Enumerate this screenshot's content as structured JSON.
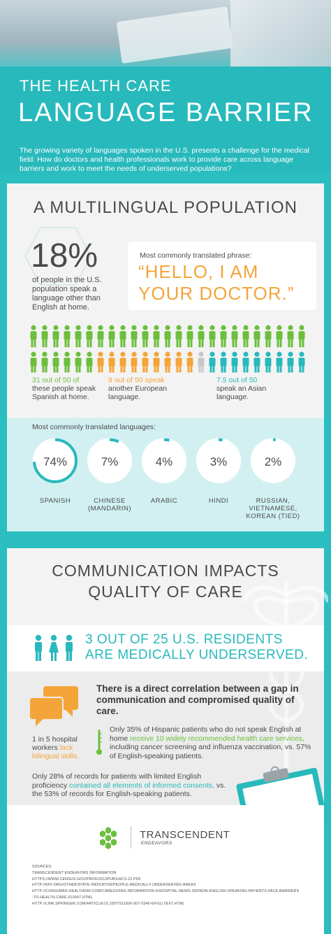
{
  "header": {
    "title_line1": "THE HEALTH CARE",
    "title_line2": "LANGUAGE BARRIER",
    "intro": "The growing variety of languages spoken in the U.S. presents a challenge for the medical field: How do doctors and health professionals work to provide care across language barriers and work to meet the needs of underserved populations?"
  },
  "multilingual": {
    "title": "A MULTILINGUAL POPULATION",
    "big_stat": "18%",
    "big_stat_desc": "of people in the U.S. population speak a language other than English at home.",
    "phrase_label": "Most commonly translated phrase:",
    "phrase": "“HELLO, I AM YOUR DOCTOR.”",
    "people_counts": {
      "spanish": 31,
      "european": 9,
      "asian": 7.5,
      "total": 50
    },
    "stats": [
      {
        "highlight": "31 out of 50 of",
        "text": "these people speak Spanish at home."
      },
      {
        "highlight": "9 out of 50 speak",
        "text": "another European language."
      },
      {
        "highlight": "7.5 out of 50",
        "text": "speak an Asian language."
      }
    ],
    "languages_label": "Most commonly translated languages:",
    "languages": [
      {
        "value": "74%",
        "pct": 74,
        "label": "SPANISH"
      },
      {
        "value": "7%",
        "pct": 7,
        "label": "CHINESE (MANDARIN)"
      },
      {
        "value": "4%",
        "pct": 4,
        "label": "ARABIC"
      },
      {
        "value": "3%",
        "pct": 3,
        "label": "HINDI"
      },
      {
        "value": "2%",
        "pct": 2,
        "label": "RUSSIAN, VIETNAMESE, KOREAN (TIED)"
      }
    ]
  },
  "quality": {
    "title": "COMMUNICATION IMPACTS QUALITY OF CARE",
    "underserved": "3 OUT OF 25 U.S. RESIDENTS ARE MEDICALLY UNDERSERVED.",
    "correlation": "There is a direct correlation between a gap in communication and compromised quality of care.",
    "workers_text": "1 in 5 hospital workers",
    "workers_highlight": "lack bilingual skills.",
    "hispanic_text1": "Only 35% of Hispanic patients who do not speak English at home",
    "hispanic_highlight": "receive 10 widely recommended health care services,",
    "hispanic_text2": "including cancer screening and influenza vaccination, vs. 57% of English-speaking patients.",
    "records_text1": "Only 28% of records for patients with limited English proficiency",
    "records_highlight": "contained all elements of informed consents,",
    "records_text2": "vs. the 53% of records for English-speaking patients."
  },
  "footer": {
    "brand": "TRANSCENDENT",
    "brand_sub": "ENDEAVORS",
    "sources_title": "SOURCES:",
    "sources": [
      "TRANSCENDENT ENDEAVORS INFORMATION",
      "HTTPS://WWW.CENSUS.GOV/PROD/2013PUBS/ACS-22.PDF",
      "HTTP://KFF.ORG/OTHER/STATE-INDICATOR/PEOPLE-MEDICALLY-UNDERSERVED-AREAS",
      "HTTP://CONSUMER.HEALTHDAY.COM/CAREGIVING-INFORMATION-6/HOSPITAL-NEWS-393/NON-ENGLISH-SPEAKING-PATIENTS-FACE-BARRIERS",
      "-TO-HEALTH-CARE-610047.HTML",
      "HTTP://LINK.SPRINGER.COM/ARTICLE/10.1007/S11606-007-0346-6/FULLTEXT.HTML"
    ]
  },
  "colors": {
    "teal": "#28b9bc",
    "green": "#6cbf3d",
    "orange": "#f4a53a",
    "gray": "#c8c8c8",
    "text": "#4a4a4a"
  }
}
